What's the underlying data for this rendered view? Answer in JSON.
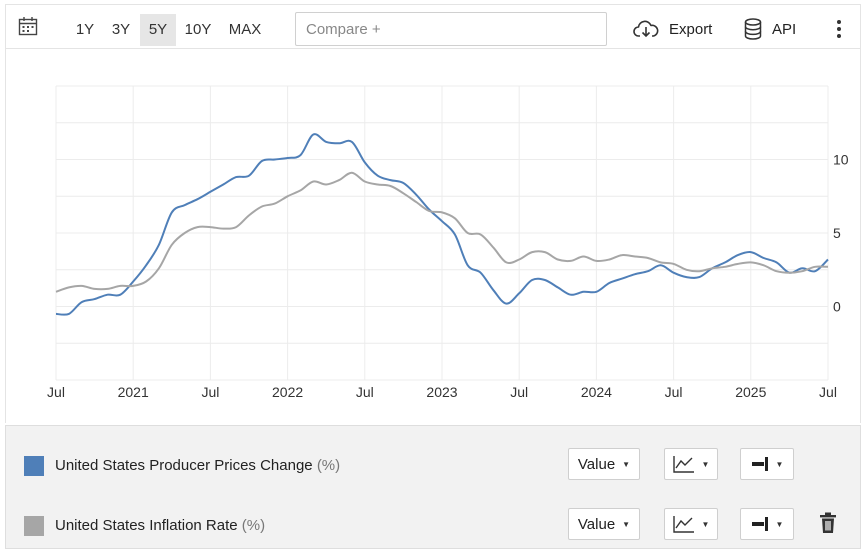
{
  "toolbar": {
    "calendar_icon": "calendar-icon",
    "ranges": [
      "1Y",
      "3Y",
      "5Y",
      "10Y",
      "MAX"
    ],
    "active_range": "5Y",
    "compare_placeholder": "Compare +",
    "export_label": "Export",
    "api_label": "API",
    "more_icon": "vertical-ellipsis-icon"
  },
  "chart_data": {
    "type": "line",
    "x_axis": {
      "ticks": [
        "Jul",
        "2021",
        "Jul",
        "2022",
        "Jul",
        "2023",
        "Jul",
        "2024",
        "Jul",
        "2025",
        "Jul"
      ],
      "range": [
        "2020-07",
        "2025-07"
      ]
    },
    "y_axis": {
      "position": "right",
      "ticks": [
        0,
        5,
        10
      ],
      "range": [
        -5,
        15
      ]
    },
    "grid": true,
    "series": [
      {
        "name": "United States Producer Prices Change",
        "unit": "(%)",
        "color": "#4f7fb8",
        "points": [
          [
            "2020-07",
            -0.5
          ],
          [
            "2020-08",
            -0.5
          ],
          [
            "2020-09",
            0.3
          ],
          [
            "2020-10",
            0.5
          ],
          [
            "2020-11",
            0.8
          ],
          [
            "2020-12",
            0.8
          ],
          [
            "2021-01",
            1.7
          ],
          [
            "2021-02",
            2.8
          ],
          [
            "2021-03",
            4.2
          ],
          [
            "2021-04",
            6.4
          ],
          [
            "2021-05",
            6.9
          ],
          [
            "2021-06",
            7.3
          ],
          [
            "2021-07",
            7.8
          ],
          [
            "2021-08",
            8.3
          ],
          [
            "2021-09",
            8.8
          ],
          [
            "2021-10",
            8.9
          ],
          [
            "2021-11",
            9.9
          ],
          [
            "2021-12",
            10.0
          ],
          [
            "2022-01",
            10.1
          ],
          [
            "2022-02",
            10.3
          ],
          [
            "2022-03",
            11.7
          ],
          [
            "2022-04",
            11.2
          ],
          [
            "2022-05",
            11.1
          ],
          [
            "2022-06",
            11.2
          ],
          [
            "2022-07",
            9.8
          ],
          [
            "2022-08",
            8.9
          ],
          [
            "2022-09",
            8.6
          ],
          [
            "2022-10",
            8.4
          ],
          [
            "2022-11",
            7.6
          ],
          [
            "2022-12",
            6.6
          ],
          [
            "2023-01",
            5.8
          ],
          [
            "2023-02",
            4.9
          ],
          [
            "2023-03",
            2.8
          ],
          [
            "2023-04",
            2.3
          ],
          [
            "2023-05",
            1.1
          ],
          [
            "2023-06",
            0.2
          ],
          [
            "2023-07",
            0.9
          ],
          [
            "2023-08",
            1.8
          ],
          [
            "2023-09",
            1.8
          ],
          [
            "2023-10",
            1.3
          ],
          [
            "2023-11",
            0.8
          ],
          [
            "2023-12",
            1.0
          ],
          [
            "2024-01",
            1.0
          ],
          [
            "2024-02",
            1.6
          ],
          [
            "2024-03",
            1.9
          ],
          [
            "2024-04",
            2.2
          ],
          [
            "2024-05",
            2.4
          ],
          [
            "2024-06",
            2.8
          ],
          [
            "2024-07",
            2.3
          ],
          [
            "2024-08",
            2.0
          ],
          [
            "2024-09",
            2.0
          ],
          [
            "2024-10",
            2.6
          ],
          [
            "2024-11",
            3.0
          ],
          [
            "2024-12",
            3.5
          ],
          [
            "2025-01",
            3.7
          ],
          [
            "2025-02",
            3.3
          ],
          [
            "2025-03",
            3.0
          ],
          [
            "2025-04",
            2.3
          ],
          [
            "2025-05",
            2.6
          ],
          [
            "2025-06",
            2.4
          ],
          [
            "2025-07",
            3.2
          ]
        ]
      },
      {
        "name": "United States Inflation Rate",
        "unit": "(%)",
        "color": "#a6a6a6",
        "points": [
          [
            "2020-07",
            1.0
          ],
          [
            "2020-08",
            1.3
          ],
          [
            "2020-09",
            1.4
          ],
          [
            "2020-10",
            1.2
          ],
          [
            "2020-11",
            1.2
          ],
          [
            "2020-12",
            1.4
          ],
          [
            "2021-01",
            1.4
          ],
          [
            "2021-02",
            1.7
          ],
          [
            "2021-03",
            2.6
          ],
          [
            "2021-04",
            4.2
          ],
          [
            "2021-05",
            5.0
          ],
          [
            "2021-06",
            5.4
          ],
          [
            "2021-07",
            5.4
          ],
          [
            "2021-08",
            5.3
          ],
          [
            "2021-09",
            5.4
          ],
          [
            "2021-10",
            6.2
          ],
          [
            "2021-11",
            6.8
          ],
          [
            "2021-12",
            7.0
          ],
          [
            "2022-01",
            7.5
          ],
          [
            "2022-02",
            7.9
          ],
          [
            "2022-03",
            8.5
          ],
          [
            "2022-04",
            8.3
          ],
          [
            "2022-05",
            8.6
          ],
          [
            "2022-06",
            9.1
          ],
          [
            "2022-07",
            8.5
          ],
          [
            "2022-08",
            8.3
          ],
          [
            "2022-09",
            8.2
          ],
          [
            "2022-10",
            7.7
          ],
          [
            "2022-11",
            7.1
          ],
          [
            "2022-12",
            6.5
          ],
          [
            "2023-01",
            6.4
          ],
          [
            "2023-02",
            6.0
          ],
          [
            "2023-03",
            5.0
          ],
          [
            "2023-04",
            4.9
          ],
          [
            "2023-05",
            4.0
          ],
          [
            "2023-06",
            3.0
          ],
          [
            "2023-07",
            3.2
          ],
          [
            "2023-08",
            3.7
          ],
          [
            "2023-09",
            3.7
          ],
          [
            "2023-10",
            3.2
          ],
          [
            "2023-11",
            3.1
          ],
          [
            "2023-12",
            3.4
          ],
          [
            "2024-01",
            3.1
          ],
          [
            "2024-02",
            3.2
          ],
          [
            "2024-03",
            3.5
          ],
          [
            "2024-04",
            3.4
          ],
          [
            "2024-05",
            3.3
          ],
          [
            "2024-06",
            3.0
          ],
          [
            "2024-07",
            2.9
          ],
          [
            "2024-08",
            2.5
          ],
          [
            "2024-09",
            2.4
          ],
          [
            "2024-10",
            2.6
          ],
          [
            "2024-11",
            2.7
          ],
          [
            "2024-12",
            2.9
          ],
          [
            "2025-01",
            3.0
          ],
          [
            "2025-02",
            2.8
          ],
          [
            "2025-03",
            2.4
          ],
          [
            "2025-04",
            2.3
          ],
          [
            "2025-05",
            2.4
          ],
          [
            "2025-06",
            2.7
          ],
          [
            "2025-07",
            2.7
          ]
        ]
      }
    ]
  },
  "legend": {
    "rows": [
      {
        "name": "United States Producer Prices Change",
        "unit": "(%)",
        "color": "#4f7fb8",
        "value_label": "Value",
        "has_delete": false
      },
      {
        "name": "United States Inflation Rate",
        "unit": "(%)",
        "color": "#a6a6a6",
        "value_label": "Value",
        "has_delete": true
      }
    ]
  }
}
